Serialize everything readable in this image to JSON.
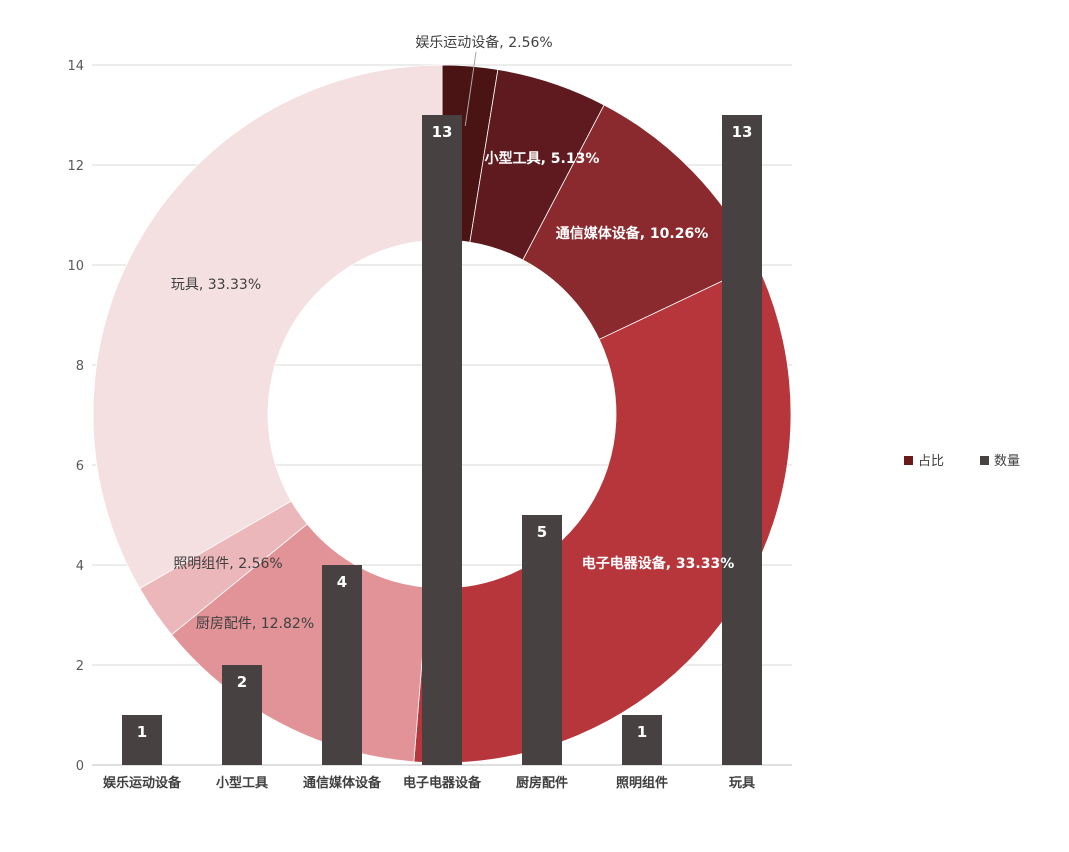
{
  "chart_data": {
    "type": "bar",
    "combined_with": "doughnut",
    "categories": [
      "娱乐运动设备",
      "小型工具",
      "通信媒体设备",
      "电子电器设备",
      "厨房配件",
      "照明组件",
      "玩具"
    ],
    "series": [
      {
        "name": "占比",
        "type": "doughnut",
        "values": [
          2.56,
          5.13,
          10.26,
          33.33,
          12.82,
          2.56,
          33.33
        ],
        "labels": [
          "娱乐运动设备, 2.56%",
          "小型工具, 5.13%",
          "通信媒体设备, 10.26%",
          "电子电器设备, 33.33%",
          "厨房配件, 12.82%",
          "照明组件, 2.56%",
          "玩具, 33.33%"
        ],
        "colors": [
          "#4a1414",
          "#5e1a1e",
          "#8a2a2e",
          "#b7363c",
          "#e19397",
          "#ebb7ba",
          "#f4dfe1"
        ]
      },
      {
        "name": "数量",
        "type": "bar",
        "values": [
          1,
          2,
          4,
          13,
          5,
          1,
          13
        ],
        "data_labels": [
          "1",
          "2",
          "4",
          "13",
          "5",
          "1",
          "13"
        ],
        "color": "#474241"
      }
    ],
    "ylim": [
      0,
      14
    ],
    "yticks": [
      "0",
      "2",
      "4",
      "6",
      "8",
      "10",
      "12",
      "14"
    ],
    "grid": true,
    "legend_position": "right",
    "legend": [
      {
        "name": "占比",
        "color": "#6b1a1c"
      },
      {
        "name": "数量",
        "color": "#474241"
      }
    ]
  }
}
